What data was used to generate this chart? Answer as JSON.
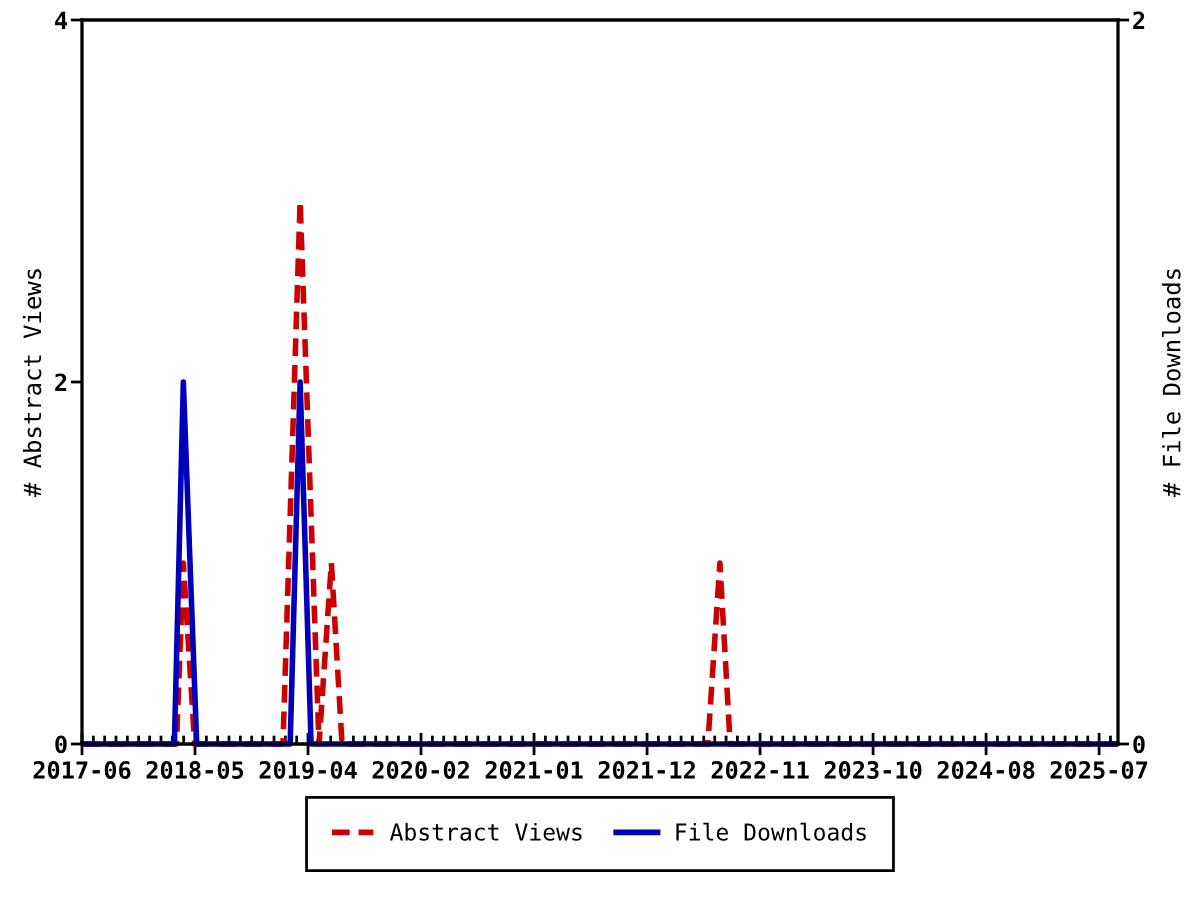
{
  "chart_data": {
    "type": "line",
    "ylabel": "# Abstract Views",
    "y2label": "# File Downloads",
    "xlim": [
      "2017-06-15",
      "2025-09-17"
    ],
    "xticks": [
      {
        "value": "2017-06-15",
        "label": "2017-06"
      },
      {
        "value": "2017-07-18",
        "label": null
      },
      {
        "value": "2017-08-20",
        "label": null
      },
      {
        "value": "2017-09-22",
        "label": null
      },
      {
        "value": "2017-10-25",
        "label": null
      },
      {
        "value": "2017-11-27",
        "label": null
      },
      {
        "value": "2017-12-29",
        "label": null
      },
      {
        "value": "2018-01-31",
        "label": null
      },
      {
        "value": "2018-03-05",
        "label": null
      },
      {
        "value": "2018-04-07",
        "label": null
      },
      {
        "value": "2018-05-10",
        "label": "2018-05"
      },
      {
        "value": "2018-06-12",
        "label": null
      },
      {
        "value": "2018-07-15",
        "label": null
      },
      {
        "value": "2018-08-17",
        "label": null
      },
      {
        "value": "2018-09-19",
        "label": null
      },
      {
        "value": "2018-10-22",
        "label": null
      },
      {
        "value": "2018-11-23",
        "label": null
      },
      {
        "value": "2018-12-26",
        "label": null
      },
      {
        "value": "2019-01-28",
        "label": null
      },
      {
        "value": "2019-03-02",
        "label": null
      },
      {
        "value": "2019-04-04",
        "label": "2019-04"
      },
      {
        "value": "2019-05-07",
        "label": null
      },
      {
        "value": "2019-06-09",
        "label": null
      },
      {
        "value": "2019-07-12",
        "label": null
      },
      {
        "value": "2019-08-14",
        "label": null
      },
      {
        "value": "2019-09-16",
        "label": null
      },
      {
        "value": "2019-10-18",
        "label": null
      },
      {
        "value": "2019-11-20",
        "label": null
      },
      {
        "value": "2019-12-23",
        "label": null
      },
      {
        "value": "2020-01-25",
        "label": null
      },
      {
        "value": "2020-02-27",
        "label": "2020-02"
      },
      {
        "value": "2020-03-31",
        "label": null
      },
      {
        "value": "2020-05-03",
        "label": null
      },
      {
        "value": "2020-06-05",
        "label": null
      },
      {
        "value": "2020-07-08",
        "label": null
      },
      {
        "value": "2020-08-10",
        "label": null
      },
      {
        "value": "2020-09-11",
        "label": null
      },
      {
        "value": "2020-10-14",
        "label": null
      },
      {
        "value": "2020-11-16",
        "label": null
      },
      {
        "value": "2020-12-19",
        "label": null
      },
      {
        "value": "2021-01-21",
        "label": "2021-01"
      },
      {
        "value": "2021-02-23",
        "label": null
      },
      {
        "value": "2021-03-28",
        "label": null
      },
      {
        "value": "2021-04-30",
        "label": null
      },
      {
        "value": "2021-06-02",
        "label": null
      },
      {
        "value": "2021-07-05",
        "label": null
      },
      {
        "value": "2021-08-06",
        "label": null
      },
      {
        "value": "2021-09-08",
        "label": null
      },
      {
        "value": "2021-10-11",
        "label": null
      },
      {
        "value": "2021-11-13",
        "label": null
      },
      {
        "value": "2021-12-16",
        "label": "2021-12"
      },
      {
        "value": "2022-01-18",
        "label": null
      },
      {
        "value": "2022-02-20",
        "label": null
      },
      {
        "value": "2022-03-25",
        "label": null
      },
      {
        "value": "2022-04-27",
        "label": null
      },
      {
        "value": "2022-05-30",
        "label": null
      },
      {
        "value": "2022-07-01",
        "label": null
      },
      {
        "value": "2022-08-03",
        "label": null
      },
      {
        "value": "2022-09-05",
        "label": null
      },
      {
        "value": "2022-10-08",
        "label": null
      },
      {
        "value": "2022-11-10",
        "label": "2022-11"
      },
      {
        "value": "2022-12-13",
        "label": null
      },
      {
        "value": "2023-01-15",
        "label": null
      },
      {
        "value": "2023-02-17",
        "label": null
      },
      {
        "value": "2023-03-22",
        "label": null
      },
      {
        "value": "2023-04-24",
        "label": null
      },
      {
        "value": "2023-05-26",
        "label": null
      },
      {
        "value": "2023-06-28",
        "label": null
      },
      {
        "value": "2023-07-31",
        "label": null
      },
      {
        "value": "2023-09-02",
        "label": null
      },
      {
        "value": "2023-10-05",
        "label": "2023-10"
      },
      {
        "value": "2023-11-07",
        "label": null
      },
      {
        "value": "2023-12-10",
        "label": null
      },
      {
        "value": "2024-01-12",
        "label": null
      },
      {
        "value": "2024-02-14",
        "label": null
      },
      {
        "value": "2024-03-18",
        "label": null
      },
      {
        "value": "2024-04-19",
        "label": null
      },
      {
        "value": "2024-05-22",
        "label": null
      },
      {
        "value": "2024-06-24",
        "label": null
      },
      {
        "value": "2024-07-27",
        "label": null
      },
      {
        "value": "2024-08-29",
        "label": "2024-08"
      },
      {
        "value": "2024-10-01",
        "label": null
      },
      {
        "value": "2024-11-03",
        "label": null
      },
      {
        "value": "2024-12-06",
        "label": null
      },
      {
        "value": "2025-01-08",
        "label": null
      },
      {
        "value": "2025-02-10",
        "label": null
      },
      {
        "value": "2025-03-14",
        "label": null
      },
      {
        "value": "2025-04-16",
        "label": null
      },
      {
        "value": "2025-05-19",
        "label": null
      },
      {
        "value": "2025-06-21",
        "label": null
      },
      {
        "value": "2025-07-24",
        "label": "2025-07"
      },
      {
        "value": "2025-08-26",
        "label": null
      }
    ],
    "ylim": [
      0,
      4
    ],
    "yticks": [
      0,
      2,
      4
    ],
    "y2lim": [
      0,
      2
    ],
    "y2ticks": [
      0,
      2
    ],
    "legend": "bottom",
    "series": [
      {
        "name": "Abstract Views",
        "color": "#cc0000",
        "line_style": "dashed",
        "x": [
          "2017-06-15",
          "2018-03-17",
          "2018-04-06",
          "2018-05-09",
          "2019-01-21",
          "2019-03-12",
          "2019-05-06",
          "2019-06-11",
          "2019-07-12",
          "2022-06-11",
          "2022-07-16",
          "2022-08-15",
          "2025-09-17"
        ],
        "values": [
          0,
          0,
          1,
          0,
          0,
          3,
          0,
          1,
          0,
          0,
          1,
          0,
          0
        ]
      },
      {
        "name": "File Downloads",
        "color": "#0000bb",
        "line_style": "solid",
        "axis": "y2",
        "x": [
          "2017-06-15",
          "2018-03-11",
          "2018-04-06",
          "2018-05-15",
          "2019-02-11",
          "2019-03-12",
          "2019-04-13",
          "2025-09-17"
        ],
        "values": [
          0,
          0,
          1,
          0,
          0,
          1,
          0,
          0
        ]
      }
    ]
  }
}
